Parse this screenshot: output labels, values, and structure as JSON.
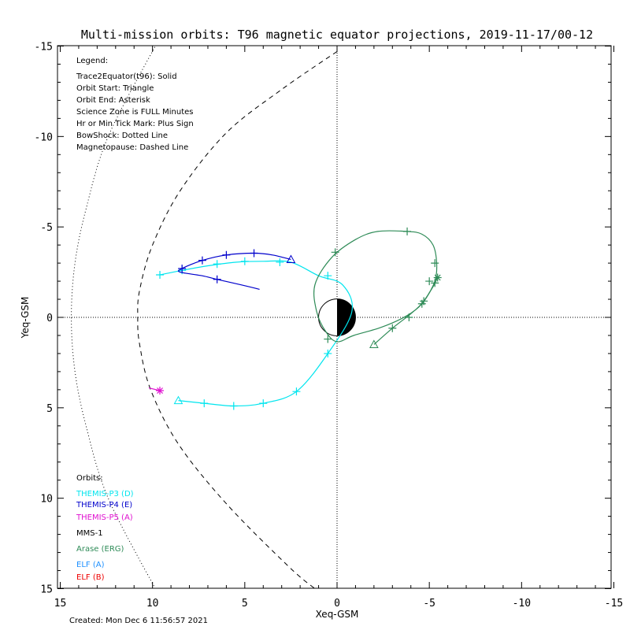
{
  "title": "Multi-mission orbits: T96 magnetic equator projections, 2019-11-17/00-12",
  "created": "Created: Mon Dec  6 11:56:57 2021",
  "legend": {
    "heading": "Legend:",
    "items": [
      "Trace2Equator(t96): Solid",
      "Orbit Start: Triangle",
      "Orbit End: Asterisk",
      "Science Zone is FULL Minutes",
      "Hr or Min Tick Mark: Plus Sign",
      "BowShock: Dotted Line",
      "Magnetopause: Dashed Line"
    ]
  },
  "orbits_heading": "Orbits:",
  "orbits": [
    {
      "label": "THEMIS-P3 (D)",
      "color": "#00e5ee"
    },
    {
      "label": "THEMIS-P4 (E)",
      "color": "#0000cc"
    },
    {
      "label": "THEMIS-P5 (A)",
      "color": "#e010d0"
    },
    {
      "label": "MMS-1",
      "color": "#000000"
    },
    {
      "label": "Arase (ERG)",
      "color": "#2e8b57"
    },
    {
      "label": "ELF (A)",
      "color": "#1e90ff"
    },
    {
      "label": "ELF (B)",
      "color": "#ee0000"
    }
  ],
  "chart_data": {
    "type": "line",
    "title": "Multi-mission orbits: T96 magnetic equator projections, 2019-11-17/00-12",
    "xlabel": "Xeq-GSM",
    "ylabel": "Yeq-GSM",
    "xlim": [
      15,
      -15
    ],
    "ylim": [
      -15,
      15
    ],
    "x_reversed": true,
    "y_inverted": true,
    "xticks": [
      15,
      10,
      5,
      0,
      -5,
      -10,
      -15
    ],
    "xtick_labels": [
      "15",
      "10",
      "5",
      "0",
      "-5",
      "-10",
      "-15"
    ],
    "yticks": [
      -15,
      -10,
      -5,
      0,
      5,
      10,
      15
    ],
    "ytick_labels": [
      "-15",
      "-10",
      "-5",
      "0",
      "5",
      "10",
      "15"
    ],
    "grid": false,
    "reference_lines": {
      "x": 0,
      "y": 0,
      "style": "dotted"
    },
    "earth": {
      "radius": 1,
      "dayside": "white",
      "nightside": "black"
    },
    "boundaries": [
      {
        "name": "BowShock",
        "style": "dotted",
        "points": [
          [
            9.8,
            -15.1
          ],
          [
            12.4,
            -10.0
          ],
          [
            13.6,
            -6.0
          ],
          [
            14.2,
            -3.0
          ],
          [
            14.4,
            0
          ],
          [
            14.2,
            3.0
          ],
          [
            13.6,
            6.0
          ],
          [
            12.4,
            10.0
          ],
          [
            9.8,
            15.1
          ]
        ]
      },
      {
        "name": "Magnetopause",
        "style": "dashed",
        "points": [
          [
            0,
            -14.7
          ],
          [
            3.0,
            -12.6
          ],
          [
            6.0,
            -10.2
          ],
          [
            8.5,
            -7.0
          ],
          [
            10.0,
            -4.0
          ],
          [
            10.7,
            -1.5
          ],
          [
            10.8,
            0
          ],
          [
            10.7,
            1.5
          ],
          [
            10.1,
            4.0
          ],
          [
            8.6,
            7.0
          ],
          [
            6.0,
            10.3
          ],
          [
            2.6,
            13.8
          ],
          [
            1.2,
            15.0
          ]
        ]
      }
    ],
    "series": [
      {
        "name": "THEMIS-P3 (D)",
        "color": "#00e5ee",
        "points": [
          [
            8.6,
            4.6
          ],
          [
            7.2,
            4.75
          ],
          [
            5.6,
            4.9
          ],
          [
            4.0,
            4.75
          ],
          [
            2.2,
            4.1
          ],
          [
            0.5,
            2.0
          ],
          [
            -0.8,
            -0.3
          ],
          [
            -0.3,
            -1.8
          ],
          [
            1.0,
            -2.3
          ],
          [
            2.5,
            -3.05
          ],
          [
            4.0,
            -3.1
          ],
          [
            5.5,
            -3.05
          ],
          [
            7.0,
            -2.85
          ],
          [
            8.4,
            -2.6
          ],
          [
            9.6,
            -2.35
          ]
        ],
        "ticks": [
          [
            7.2,
            4.75
          ],
          [
            5.6,
            4.9
          ],
          [
            4.0,
            4.75
          ],
          [
            2.2,
            4.1
          ],
          [
            0.5,
            2.0
          ],
          [
            0.5,
            -2.3
          ],
          [
            3.1,
            -3.05
          ],
          [
            5.0,
            -3.1
          ],
          [
            6.5,
            -2.95
          ],
          [
            8.4,
            -2.6
          ],
          [
            9.6,
            -2.35
          ]
        ],
        "start": [
          8.6,
          4.6
        ],
        "end": null
      },
      {
        "name": "THEMIS-P4 (E)",
        "color": "#0000cc",
        "points": [
          [
            2.5,
            -3.2
          ],
          [
            3.5,
            -3.45
          ],
          [
            4.5,
            -3.55
          ],
          [
            6.0,
            -3.45
          ],
          [
            7.3,
            -3.15
          ],
          [
            8.4,
            -2.7
          ],
          [
            8.5,
            -2.5
          ],
          [
            7.3,
            -2.3
          ],
          [
            6.5,
            -2.1
          ],
          [
            5.2,
            -1.8
          ],
          [
            4.2,
            -1.55
          ]
        ],
        "ticks": [
          [
            4.5,
            -3.55
          ],
          [
            6.0,
            -3.45
          ],
          [
            7.3,
            -3.15
          ],
          [
            8.4,
            -2.7
          ],
          [
            6.5,
            -2.1
          ]
        ],
        "start": [
          2.5,
          -3.2
        ],
        "end": null
      },
      {
        "name": "THEMIS-P5 (A)",
        "color": "#e010d0",
        "points": [
          [
            10.2,
            3.9
          ],
          [
            9.6,
            4.05
          ]
        ],
        "ticks": [],
        "start": null,
        "end": [
          9.6,
          4.05
        ]
      },
      {
        "name": "Arase (ERG)",
        "color": "#2e8b57",
        "points": [
          [
            -2.0,
            1.5
          ],
          [
            -3.0,
            0.6
          ],
          [
            -4.0,
            -0.2
          ],
          [
            -4.7,
            -0.9
          ],
          [
            -5.3,
            -2.0
          ],
          [
            -5.4,
            -3.0
          ],
          [
            -5.2,
            -4.0
          ],
          [
            -4.6,
            -4.6
          ],
          [
            -3.8,
            -4.75
          ],
          [
            -2.2,
            -4.75
          ],
          [
            -1.0,
            -4.3
          ],
          [
            0.3,
            -3.3
          ],
          [
            1.2,
            -1.8
          ],
          [
            1.1,
            -0.3
          ],
          [
            0.6,
            0.8
          ],
          [
            0.0,
            1.35
          ],
          [
            -0.9,
            1.0
          ],
          [
            -2.4,
            0.55
          ],
          [
            -3.8,
            -0.1
          ],
          [
            -4.6,
            -0.75
          ],
          [
            -5.2,
            -1.7
          ],
          [
            -5.45,
            -2.2
          ]
        ],
        "ticks": [
          [
            -3.8,
            -4.75
          ],
          [
            -5.3,
            -3.0
          ],
          [
            -5.0,
            -2.0
          ],
          [
            -4.7,
            -0.9
          ],
          [
            -3.9,
            0.0
          ],
          [
            -3.0,
            0.6
          ],
          [
            0.1,
            -3.6
          ],
          [
            0.5,
            1.2
          ],
          [
            -4.6,
            -0.75
          ],
          [
            -5.3,
            -1.9
          ]
        ],
        "start": [
          -2.0,
          1.5
        ],
        "end": [
          -5.45,
          -2.2
        ]
      }
    ]
  }
}
